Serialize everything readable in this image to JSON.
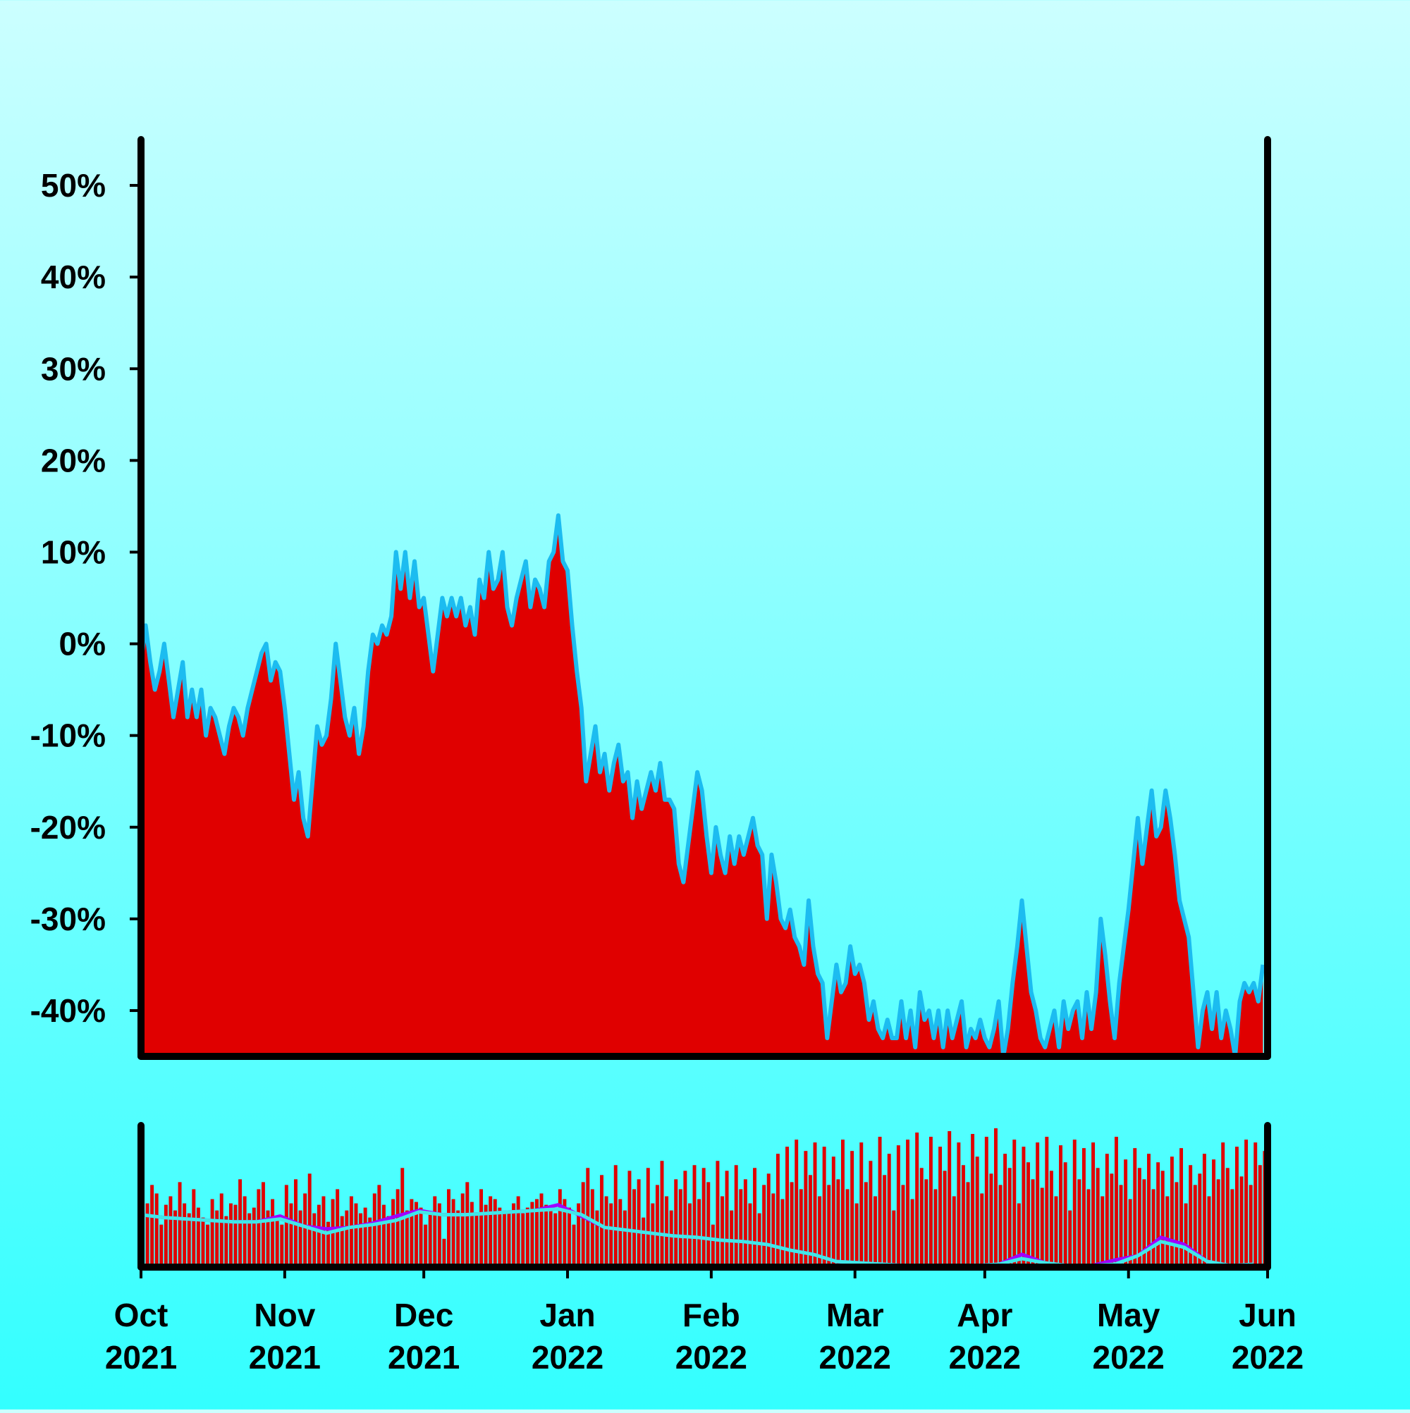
{
  "chart_data": [
    {
      "type": "area",
      "color": "#e00000",
      "line_color": "#1cbcf0",
      "ylim": [
        -45,
        55
      ],
      "yticks": [
        {
          "value": -40,
          "label": "-40%"
        },
        {
          "value": -30,
          "label": "-30%"
        },
        {
          "value": -20,
          "label": "-20%"
        },
        {
          "value": -10,
          "label": "-10%"
        },
        {
          "value": 0,
          "label": "0%"
        },
        {
          "value": 10,
          "label": "10%"
        },
        {
          "value": 20,
          "label": "20%"
        },
        {
          "value": 30,
          "label": "30%"
        },
        {
          "value": 40,
          "label": "40%"
        },
        {
          "value": 50,
          "label": "50%"
        }
      ],
      "xlim": [
        0,
        243
      ],
      "xticks": [
        {
          "value": 0,
          "label": "Oct 2021"
        },
        {
          "value": 31,
          "label": "Nov 2021"
        },
        {
          "value": 61,
          "label": "Dec 2021"
        },
        {
          "value": 92,
          "label": "Jan 2022"
        },
        {
          "value": 123,
          "label": "Feb 2022"
        },
        {
          "value": 154,
          "label": "Mar 2022"
        },
        {
          "value": 182,
          "label": "Apr 2022"
        },
        {
          "value": 213,
          "label": "May 2022"
        },
        {
          "value": 243,
          "label": "Jun 2022"
        }
      ],
      "x": [
        0,
        1,
        2,
        3,
        4,
        5,
        6,
        7,
        8,
        9,
        10,
        11,
        12,
        13,
        14,
        15,
        16,
        17,
        18,
        19,
        20,
        21,
        22,
        23,
        24,
        25,
        26,
        27,
        28,
        29,
        30,
        31,
        32,
        33,
        34,
        35,
        36,
        37,
        38,
        39,
        40,
        41,
        42,
        43,
        44,
        45,
        46,
        47,
        48,
        49,
        50,
        51,
        52,
        53,
        54,
        55,
        56,
        57,
        58,
        59,
        60,
        61,
        62,
        63,
        64,
        65,
        66,
        67,
        68,
        69,
        70,
        71,
        72,
        73,
        74,
        75,
        76,
        77,
        78,
        79,
        80,
        81,
        82,
        83,
        84,
        85,
        86,
        87,
        88,
        89,
        90,
        91,
        92,
        93,
        94,
        95,
        96,
        97,
        98,
        99,
        100,
        101,
        102,
        103,
        104,
        105,
        106,
        107,
        108,
        109,
        110,
        111,
        112,
        113,
        114,
        115,
        116,
        117,
        118,
        119,
        120,
        121,
        122,
        123,
        124,
        125,
        126,
        127,
        128,
        129,
        130,
        131,
        132,
        133,
        134,
        135,
        136,
        137,
        138,
        139,
        140,
        141,
        142,
        143,
        144,
        145,
        146,
        147,
        148,
        149,
        150,
        151,
        152,
        153,
        154,
        155,
        156,
        157,
        158,
        159,
        160,
        161,
        162,
        163,
        164,
        165,
        166,
        167,
        168,
        169,
        170,
        171,
        172,
        173,
        174,
        175,
        176,
        177,
        178,
        179,
        180,
        181,
        182,
        183,
        184,
        185,
        186,
        187,
        188,
        189,
        190,
        191,
        192,
        193,
        194,
        195,
        196,
        197,
        198,
        199,
        200,
        201,
        202,
        203,
        204,
        205,
        206,
        207,
        208,
        209,
        210,
        211,
        212,
        213,
        214,
        215,
        216,
        217,
        218,
        219,
        220,
        221,
        222,
        223,
        224,
        225,
        226,
        227,
        228,
        229,
        230,
        231,
        232,
        233,
        234,
        235,
        236,
        237,
        238,
        239,
        240,
        241,
        242
      ],
      "values": [
        -2,
        2,
        -2,
        -5,
        -3,
        0,
        -4,
        -8,
        -5,
        -2,
        -8,
        -5,
        -8,
        -5,
        -10,
        -7,
        -8,
        -10,
        -12,
        -9,
        -7,
        -8,
        -10,
        -7,
        -5,
        -3,
        -1,
        0,
        -4,
        -2,
        -3,
        -7,
        -12,
        -17,
        -14,
        -19,
        -21,
        -15,
        -9,
        -11,
        -10,
        -6,
        0,
        -4,
        -8,
        -10,
        -7,
        -12,
        -9,
        -3,
        1,
        0,
        2,
        1,
        3,
        10,
        6,
        10,
        5,
        9,
        4,
        5,
        1,
        -3,
        1,
        5,
        3,
        5,
        3,
        5,
        2,
        4,
        1,
        7,
        5,
        10,
        6,
        7,
        10,
        4,
        2,
        5,
        7,
        9,
        4,
        7,
        6,
        4,
        9,
        10,
        14,
        9,
        8,
        2,
        -3,
        -7,
        -15,
        -12,
        -9,
        -14,
        -12,
        -16,
        -13,
        -11,
        -15,
        -14,
        -19,
        -15,
        -18,
        -16,
        -14,
        -16,
        -13,
        -17,
        -17,
        -18,
        -24,
        -26,
        -22,
        -18,
        -14,
        -16,
        -21,
        -25,
        -20,
        -23,
        -25,
        -21,
        -24,
        -21,
        -23,
        -21,
        -19,
        -22,
        -23,
        -30,
        -23,
        -26,
        -30,
        -31,
        -29,
        -32,
        -33,
        -35,
        -28,
        -33,
        -36,
        -37,
        -43,
        -39,
        -35,
        -38,
        -37,
        -33,
        -36,
        -35,
        -37,
        -41,
        -39,
        -42,
        -43,
        -41,
        -43,
        -43,
        -39,
        -43,
        -40,
        -44,
        -38,
        -41,
        -40,
        -43,
        -40,
        -44,
        -40,
        -43,
        -41,
        -39,
        -44,
        -42,
        -43,
        -41,
        -43,
        -44,
        -42,
        -39,
        -45,
        -42,
        -37,
        -33,
        -28,
        -33,
        -38,
        -40,
        -43,
        -44,
        -42,
        -40,
        -44,
        -39,
        -42,
        -40,
        -39,
        -43,
        -38,
        -42,
        -38,
        -30,
        -34,
        -39,
        -43,
        -37,
        -33,
        -29,
        -24,
        -19,
        -24,
        -20,
        -16,
        -21,
        -20,
        -16,
        -19,
        -23,
        -28,
        -30,
        -32,
        -38,
        -44,
        -40,
        -38,
        -42,
        -38,
        -43,
        -40,
        -42,
        -45,
        -39,
        -37,
        -38,
        -37,
        -39,
        -35
      ]
    },
    {
      "type": "bar",
      "color": "#e00000",
      "ylim": [
        0,
        100
      ],
      "values": [
        55,
        45,
        58,
        52,
        30,
        44,
        50,
        40,
        60,
        45,
        38,
        55,
        42,
        35,
        30,
        48,
        40,
        52,
        36,
        45,
        44,
        62,
        50,
        38,
        42,
        55,
        60,
        40,
        48,
        35,
        30,
        58,
        45,
        62,
        40,
        52,
        66,
        38,
        44,
        50,
        32,
        48,
        55,
        36,
        40,
        50,
        45,
        38,
        42,
        35,
        52,
        58,
        44,
        36,
        48,
        55,
        70,
        40,
        48,
        46,
        42,
        30,
        38,
        50,
        45,
        20,
        55,
        48,
        40,
        52,
        60,
        46,
        38,
        55,
        44,
        50,
        48,
        42,
        38,
        40,
        45,
        50,
        38,
        42,
        46,
        48,
        52,
        44,
        40,
        38,
        55,
        48,
        42,
        30,
        45,
        60,
        70,
        55,
        40,
        65,
        50,
        45,
        72,
        48,
        40,
        68,
        55,
        62,
        35,
        70,
        45,
        58,
        75,
        50,
        40,
        62,
        55,
        68,
        45,
        72,
        48,
        70,
        60,
        30,
        75,
        50,
        68,
        40,
        72,
        55,
        62,
        45,
        70,
        38,
        58,
        66,
        52,
        80,
        48,
        85,
        60,
        90,
        55,
        82,
        65,
        88,
        50,
        85,
        58,
        78,
        62,
        90,
        55,
        82,
        45,
        88,
        60,
        75,
        50,
        92,
        65,
        80,
        40,
        86,
        58,
        90,
        48,
        95,
        70,
        62,
        92,
        55,
        85,
        68,
        96,
        50,
        88,
        72,
        60,
        94,
        78,
        52,
        92,
        66,
        98,
        58,
        80,
        70,
        90,
        45,
        85,
        74,
        62,
        88,
        56,
        92,
        68,
        50,
        86,
        74,
        40,
        90,
        62,
        84,
        55,
        88,
        70,
        50,
        80,
        66,
        92,
        58,
        76,
        48,
        84,
        70,
        62,
        80,
        55,
        74,
        68,
        50,
        78,
        60,
        84,
        45,
        72,
        58,
        66,
        80,
        50,
        76,
        62,
        88,
        70,
        55,
        85,
        64,
        90,
        58,
        88,
        72,
        82
      ],
      "lines": [
        {
          "color": "#a000ff",
          "x": [
            0,
            5,
            10,
            15,
            20,
            25,
            30,
            35,
            40,
            45,
            50,
            55,
            60,
            65,
            70,
            75,
            80,
            85,
            90,
            95,
            100,
            105,
            110,
            115,
            120,
            125,
            130,
            135,
            140,
            145,
            150,
            155,
            160,
            165,
            170,
            175,
            180,
            185,
            190,
            195,
            200,
            205,
            210,
            215,
            220,
            225,
            230,
            235,
            240
          ],
          "values": [
            37,
            35,
            34,
            33,
            32,
            32,
            36,
            29,
            27,
            28,
            31,
            36,
            40,
            37,
            37,
            38,
            39,
            40,
            44,
            36,
            28,
            26,
            24,
            22,
            21,
            19,
            18,
            16,
            12,
            9,
            4,
            3,
            2,
            1,
            1,
            1,
            1,
            2,
            9,
            3,
            1,
            1,
            5,
            8,
            21,
            16,
            4,
            1,
            2
          ]
        },
        {
          "color": "#40e8e8",
          "x": [
            0,
            5,
            10,
            15,
            20,
            25,
            30,
            35,
            40,
            45,
            50,
            55,
            60,
            65,
            70,
            75,
            80,
            85,
            90,
            95,
            100,
            105,
            110,
            115,
            120,
            125,
            130,
            135,
            140,
            145,
            150,
            155,
            160,
            165,
            170,
            175,
            180,
            185,
            190,
            195,
            200,
            205,
            210,
            215,
            220,
            225,
            230,
            235,
            240
          ],
          "values": [
            37,
            35,
            34,
            33,
            32,
            32,
            34,
            29,
            24,
            28,
            30,
            33,
            39,
            37,
            37,
            38,
            39,
            40,
            41,
            37,
            28,
            26,
            24,
            22,
            21,
            19,
            18,
            16,
            12,
            9,
            4,
            3,
            2,
            1,
            1,
            1,
            1,
            2,
            6,
            3,
            1,
            1,
            2,
            8,
            18,
            14,
            4,
            1,
            2
          ]
        }
      ]
    }
  ]
}
